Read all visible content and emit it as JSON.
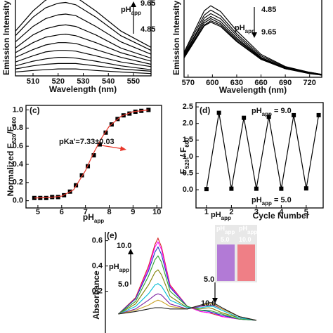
{
  "chart_data": [
    {
      "type": "line",
      "x_label": [
        "Wavelength (nm)"
      ],
      "y_label": [
        "Emission Intensity"
      ],
      "xlim": [
        503,
        557
      ],
      "ylim": [
        0,
        100
      ],
      "xticks": [
        510,
        520,
        530,
        540,
        550
      ],
      "x": [
        503,
        510,
        515,
        520,
        523,
        527,
        535,
        545,
        557
      ],
      "color": "#000000",
      "series": [
        {
          "values": [
            58,
            84,
            98,
            104,
            105,
            102,
            84,
            58,
            37
          ]
        },
        {
          "values": [
            52,
            76,
            88,
            94,
            95,
            92,
            76,
            52,
            33
          ]
        },
        {
          "values": [
            44,
            64,
            74,
            79,
            80,
            78,
            64,
            44,
            28
          ]
        },
        {
          "values": [
            36,
            53,
            61,
            65,
            66,
            64,
            53,
            36,
            23
          ]
        },
        {
          "values": [
            30,
            43,
            50,
            53,
            54,
            52,
            43,
            30,
            19
          ]
        },
        {
          "values": [
            24,
            34,
            40,
            43,
            43,
            42,
            34,
            24,
            15
          ]
        },
        {
          "values": [
            18,
            26,
            31,
            33,
            33,
            32,
            26,
            18,
            12
          ]
        },
        {
          "values": [
            13,
            19,
            22,
            24,
            24,
            23,
            19,
            13,
            8
          ]
        },
        {
          "values": [
            9,
            13,
            15,
            16,
            16,
            16,
            13,
            9,
            6
          ]
        },
        {
          "values": [
            5,
            7,
            8,
            9,
            9,
            9,
            7,
            5,
            3
          ]
        }
      ],
      "annotations": [
        [
          "pH",
          "app"
        ],
        [
          "9.65"
        ],
        [
          "4.85"
        ]
      ]
    },
    {
      "type": "line",
      "x_label": [
        "Wavelength (nm)"
      ],
      "y_label": [
        "Emission Intensity"
      ],
      "xlim": [
        565,
        735
      ],
      "ylim": [
        0,
        110
      ],
      "xticks": [
        570,
        600,
        630,
        660,
        690,
        720
      ],
      "x": [
        565,
        580,
        590,
        598,
        610,
        630,
        660,
        690,
        720,
        735
      ],
      "color": "#000000",
      "series": [
        {
          "values": [
            35,
            70,
            93,
            100,
            92,
            65,
            32,
            15,
            7,
            4
          ]
        },
        {
          "values": [
            33,
            66,
            87,
            94,
            86,
            61,
            30,
            14,
            7,
            4
          ]
        },
        {
          "values": [
            31,
            62,
            83,
            89,
            82,
            58,
            28,
            13,
            6,
            4
          ]
        },
        {
          "values": [
            30,
            60,
            79,
            85,
            78,
            55,
            27,
            13,
            6,
            3
          ]
        },
        {
          "values": [
            29,
            57,
            76,
            82,
            75,
            53,
            26,
            12,
            6,
            3
          ]
        },
        {
          "values": [
            28,
            55,
            73,
            79,
            73,
            51,
            25,
            12,
            6,
            3
          ]
        },
        {
          "values": [
            27,
            54,
            72,
            77,
            71,
            50,
            25,
            12,
            5,
            3
          ]
        }
      ],
      "annotations": [
        [
          "4.85"
        ],
        [
          "pH",
          "app"
        ],
        [
          "9.65"
        ]
      ]
    },
    {
      "type": "scatter",
      "panel_label": "(c)",
      "x_label": [
        "pH",
        "app"
      ],
      "y_label": [
        "Normalized F",
        "520",
        "/F",
        "600"
      ],
      "xlim": [
        4.5,
        10.2
      ],
      "ylim": [
        -0.08,
        1.05
      ],
      "xticks": [
        5,
        6,
        7,
        8,
        9,
        10
      ],
      "yticks": [
        {
          "value": 0,
          "label": "0.0"
        },
        0.2,
        0.4,
        0.6,
        0.8,
        {
          "value": 1,
          "label": "1.0"
        }
      ],
      "series": [
        {
          "color": "#000000",
          "line": false,
          "marker": "square",
          "x": [
            4.85,
            5.1,
            5.35,
            5.6,
            5.85,
            6.1,
            6.35,
            6.6,
            6.85,
            7.1,
            7.35,
            7.6,
            7.85,
            8.1,
            8.35,
            8.6,
            8.85,
            9.1,
            9.35,
            9.65
          ],
          "values": [
            0.03,
            0.03,
            0.03,
            0.04,
            0.04,
            0.06,
            0.1,
            0.17,
            0.28,
            0.38,
            0.5,
            0.62,
            0.75,
            0.84,
            0.9,
            0.94,
            0.96,
            0.98,
            0.99,
            1.0
          ]
        },
        {
          "color": "#e8372a",
          "line": true,
          "marker": null,
          "x": [
            4.85,
            5.5,
            6,
            6.5,
            7,
            7.33,
            7.7,
            8,
            8.5,
            9,
            9.65
          ],
          "values": [
            0.03,
            0.035,
            0.05,
            0.12,
            0.33,
            0.52,
            0.7,
            0.82,
            0.93,
            0.98,
            1.0
          ]
        }
      ],
      "annotations": [
        [
          "pKa'=7.33±0.03"
        ]
      ]
    },
    {
      "type": "line",
      "panel_label": "(d)",
      "x_label": [
        "Cycle Number"
      ],
      "y_label": [
        "F",
        "520",
        " / F",
        "600"
      ],
      "xlim": [
        0.58,
        5.68
      ],
      "ylim": [
        -0.55,
        2.63
      ],
      "xticks": [
        1,
        2,
        3,
        4,
        5
      ],
      "yticks": [
        {
          "value": 0,
          "label": "0.0"
        },
        0.5,
        {
          "value": 1,
          "label": "1.0"
        },
        1.5,
        {
          "value": 2,
          "label": "2.0"
        },
        2.5
      ],
      "series": [
        {
          "color": "#000000",
          "line": true,
          "marker": "square",
          "x": [
            1,
            1.5,
            2,
            2.5,
            3,
            3.5,
            4,
            4.5,
            5,
            5.5
          ],
          "values": [
            0.02,
            2.32,
            0.03,
            2.17,
            0.03,
            2.2,
            0.03,
            2.25,
            0.04,
            2.25
          ]
        }
      ],
      "annotations": [
        [
          "pH",
          "app",
          " = 9.0"
        ],
        [
          "pH",
          "app",
          " = 5.0"
        ],
        [
          "pH",
          "app"
        ]
      ]
    },
    {
      "type": "line",
      "panel_label": "(e)",
      "y_label": [
        "Absorbance"
      ],
      "xlim": [
        350,
        700
      ],
      "ylim": [
        -0.13,
        0.67
      ],
      "yticks": [
        0.2,
        0.4,
        0.6
      ],
      "x": [
        380,
        420,
        450,
        465,
        472,
        480,
        500,
        540,
        570,
        590,
        600,
        620,
        660,
        700
      ],
      "series": [
        {
          "color": "#d62728",
          "values": [
            0.02,
            0.15,
            0.4,
            0.57,
            0.62,
            0.55,
            0.25,
            0.08,
            0.04,
            0.03,
            0.02,
            0.0,
            -0.02,
            -0.03
          ]
        },
        {
          "color": "#ff00ff",
          "values": [
            0.02,
            0.14,
            0.38,
            0.55,
            0.59,
            0.53,
            0.24,
            0.08,
            0.04,
            0.03,
            0.03,
            0.0,
            -0.02,
            -0.03
          ]
        },
        {
          "color": "#1f3fbf",
          "values": [
            0.02,
            0.14,
            0.36,
            0.51,
            0.55,
            0.49,
            0.23,
            0.08,
            0.05,
            0.04,
            0.03,
            0.01,
            -0.02,
            -0.03
          ]
        },
        {
          "color": "#2ca02c",
          "values": [
            0.02,
            0.12,
            0.32,
            0.45,
            0.48,
            0.43,
            0.2,
            0.08,
            0.05,
            0.05,
            0.04,
            0.02,
            -0.02,
            -0.03
          ]
        },
        {
          "color": "#808000",
          "values": [
            0.02,
            0.1,
            0.25,
            0.35,
            0.37,
            0.33,
            0.16,
            0.07,
            0.06,
            0.07,
            0.06,
            0.03,
            -0.01,
            -0.03
          ]
        },
        {
          "color": "#00bcd4",
          "values": [
            0.02,
            0.08,
            0.18,
            0.25,
            0.26,
            0.24,
            0.13,
            0.07,
            0.07,
            0.08,
            0.08,
            0.05,
            -0.01,
            -0.03
          ]
        },
        {
          "color": "#7b1fa2",
          "values": [
            0.02,
            0.06,
            0.13,
            0.17,
            0.18,
            0.17,
            0.1,
            0.06,
            0.08,
            0.09,
            0.09,
            0.06,
            0.0,
            -0.03
          ]
        },
        {
          "color": "#c9a227",
          "values": [
            0.02,
            0.05,
            0.09,
            0.12,
            0.13,
            0.12,
            0.08,
            0.06,
            0.09,
            0.1,
            0.1,
            0.06,
            0.0,
            -0.03
          ]
        },
        {
          "color": "#1a1a1a",
          "values": [
            0.02,
            0.04,
            0.06,
            0.07,
            0.07,
            0.07,
            0.06,
            0.06,
            0.09,
            0.11,
            0.11,
            0.07,
            0.0,
            -0.03
          ]
        }
      ],
      "annotations": [
        [
          "pH",
          "app"
        ],
        [
          "10.0"
        ],
        [
          "5.0"
        ],
        [
          "5.0"
        ],
        [
          "10.0"
        ],
        [
          "pH",
          "app"
        ],
        [
          "5.0"
        ],
        [
          "pH",
          "app"
        ],
        [
          "10.0"
        ]
      ]
    }
  ]
}
